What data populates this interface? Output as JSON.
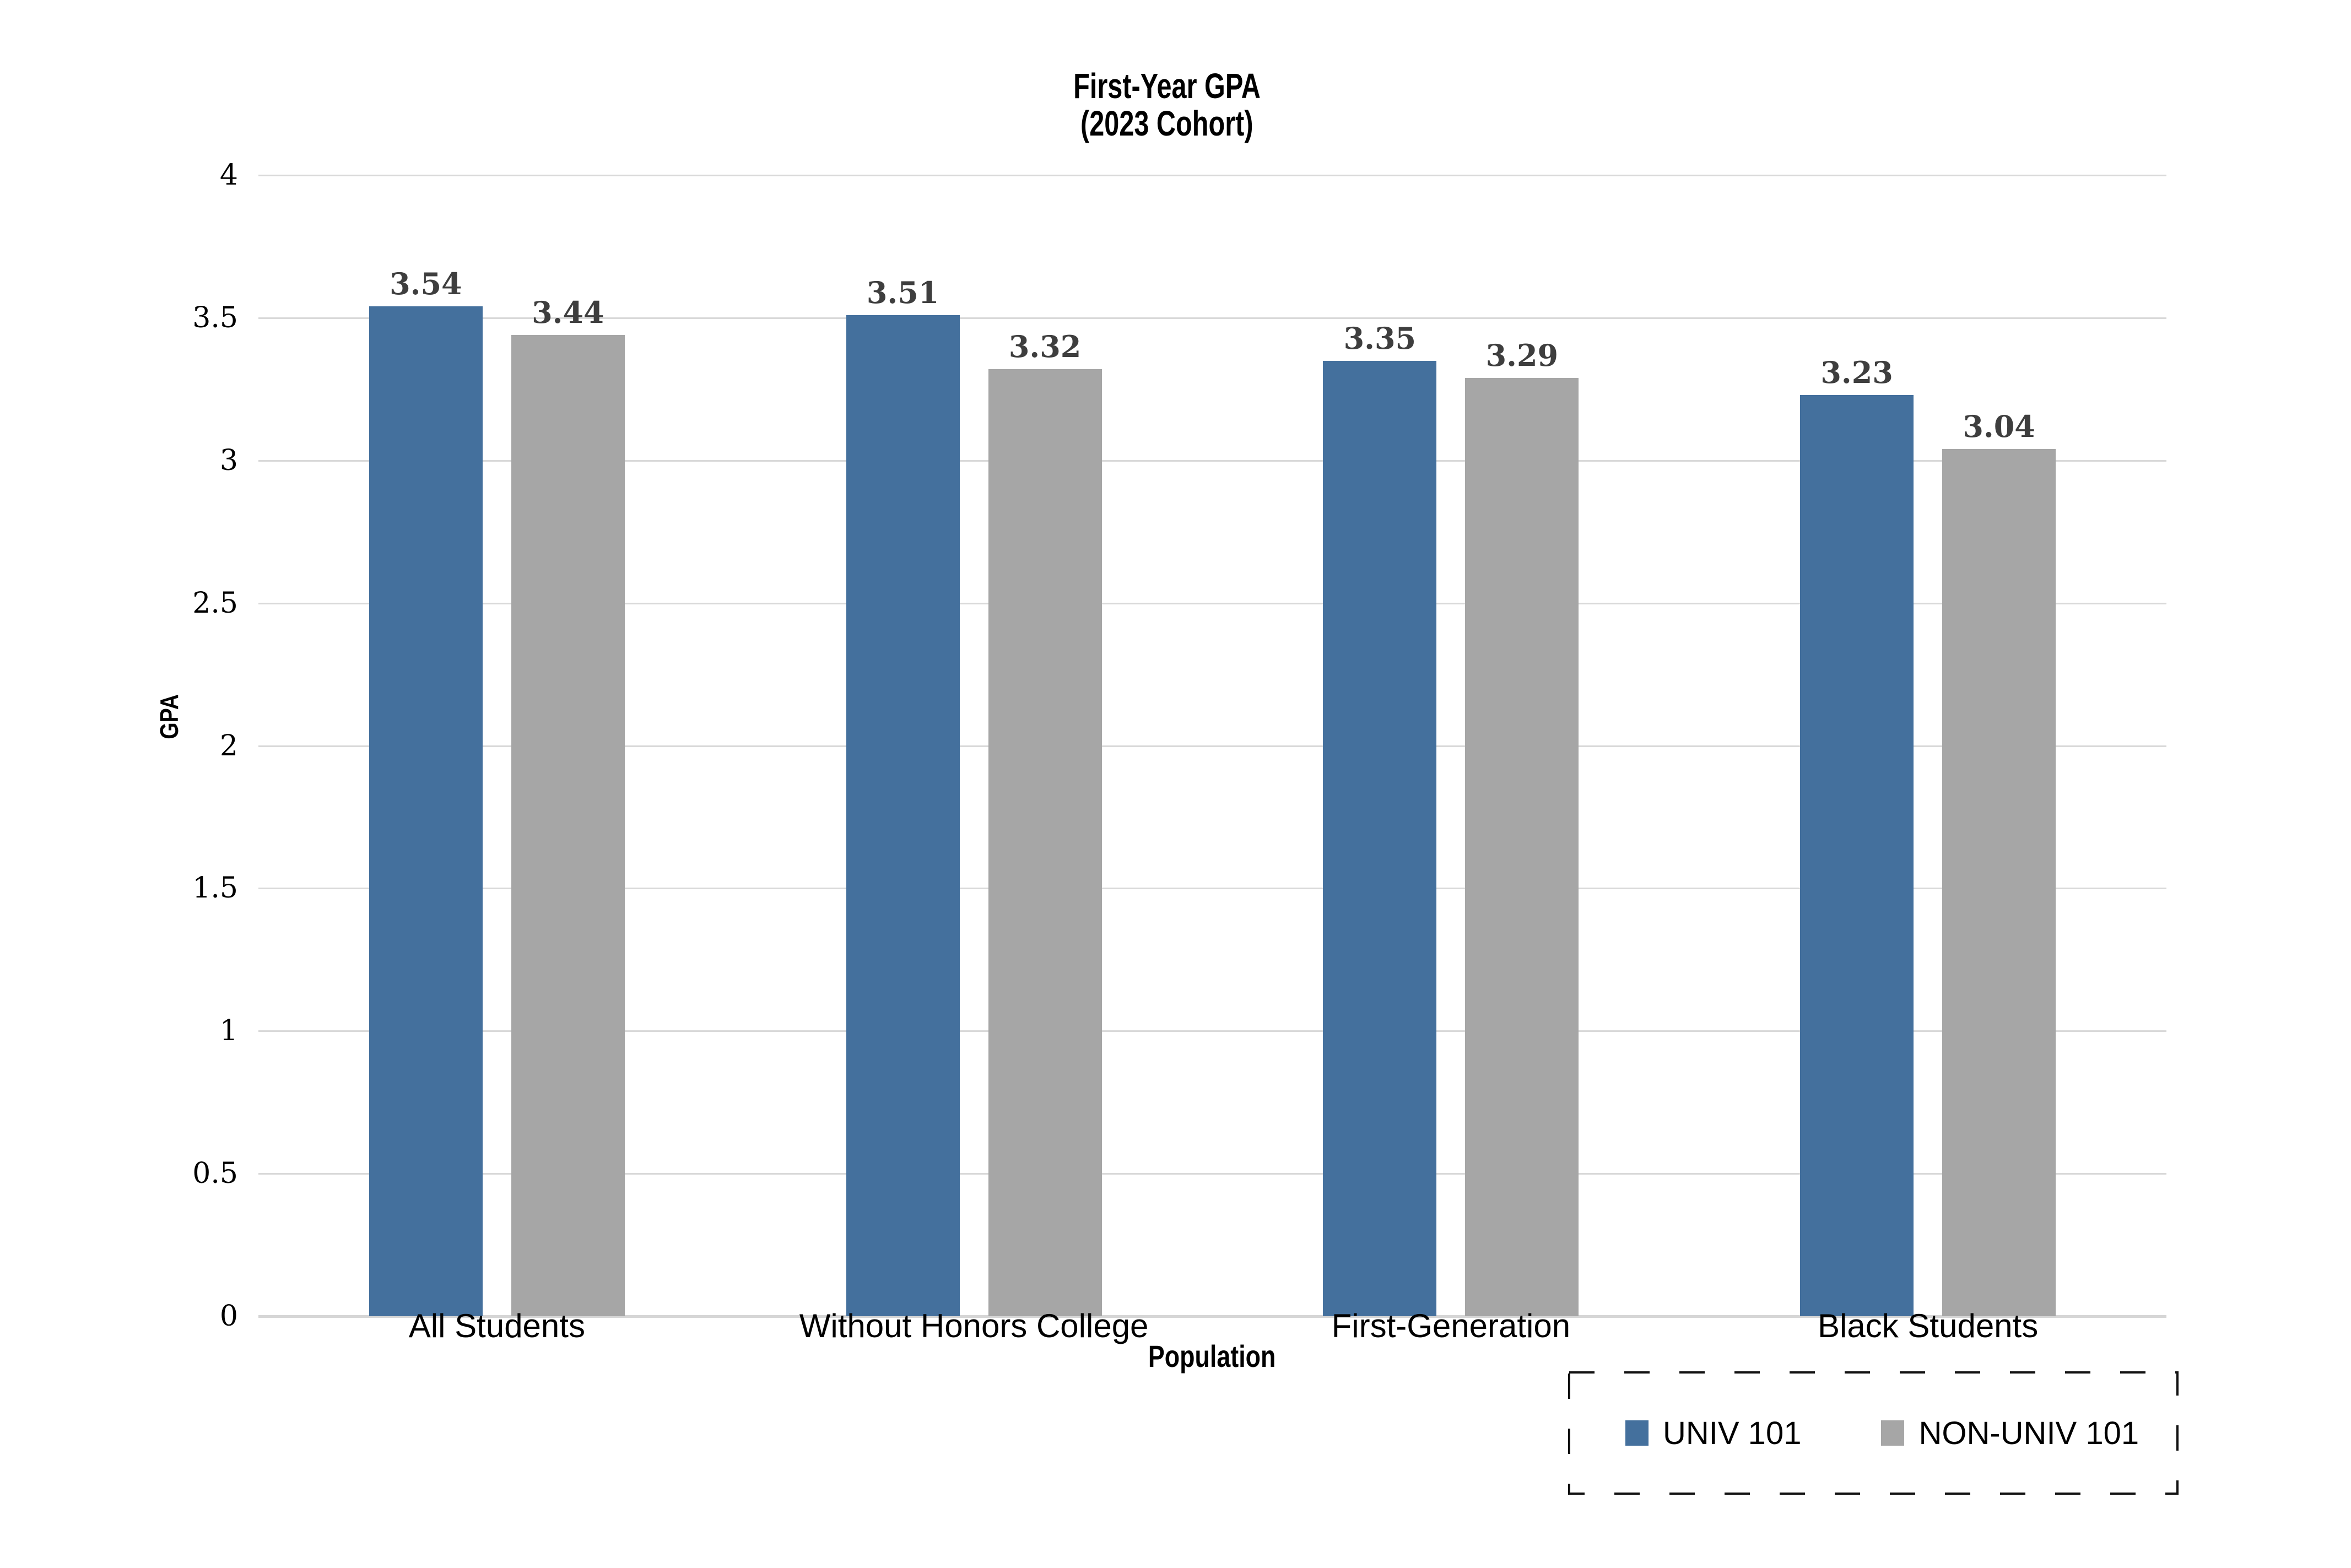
{
  "title": {
    "line1": "First-Year GPA",
    "line2": "(2023 Cohort)"
  },
  "axes": {
    "y_label": "GPA",
    "x_label": "Population",
    "y_ticks": [
      "4",
      "3.5",
      "3",
      "2.5",
      "2",
      "1.5",
      "1",
      "0.5",
      "0"
    ],
    "y_max": 4
  },
  "chart_data": {
    "type": "bar",
    "title": "First-Year GPA (2023 Cohort)",
    "xlabel": "Population",
    "ylabel": "GPA",
    "ylim": [
      0,
      4
    ],
    "grid": true,
    "legend_position": "bottom-right",
    "categories": [
      "All Students",
      "Without Honors College",
      "First-Generation",
      "Black Students"
    ],
    "series": [
      {
        "name": "UNIV 101",
        "color": "#44709D",
        "values": [
          3.54,
          3.51,
          3.35,
          3.23
        ],
        "labels": [
          "3.54",
          "3.51",
          "3.35",
          "3.23"
        ]
      },
      {
        "name": "NON-UNIV 101",
        "color": "#A6A6A6",
        "values": [
          3.44,
          3.32,
          3.29,
          3.04
        ],
        "labels": [
          "3.44",
          "3.32",
          "3.29",
          "3.04"
        ]
      }
    ]
  },
  "colors": {
    "background": "#FFFFFF",
    "gridline": "#D9D9D9",
    "axis_line": "#D6D6D6",
    "value_label": "#3E3E3E",
    "text": "#000000",
    "legend_border": "#111111"
  }
}
